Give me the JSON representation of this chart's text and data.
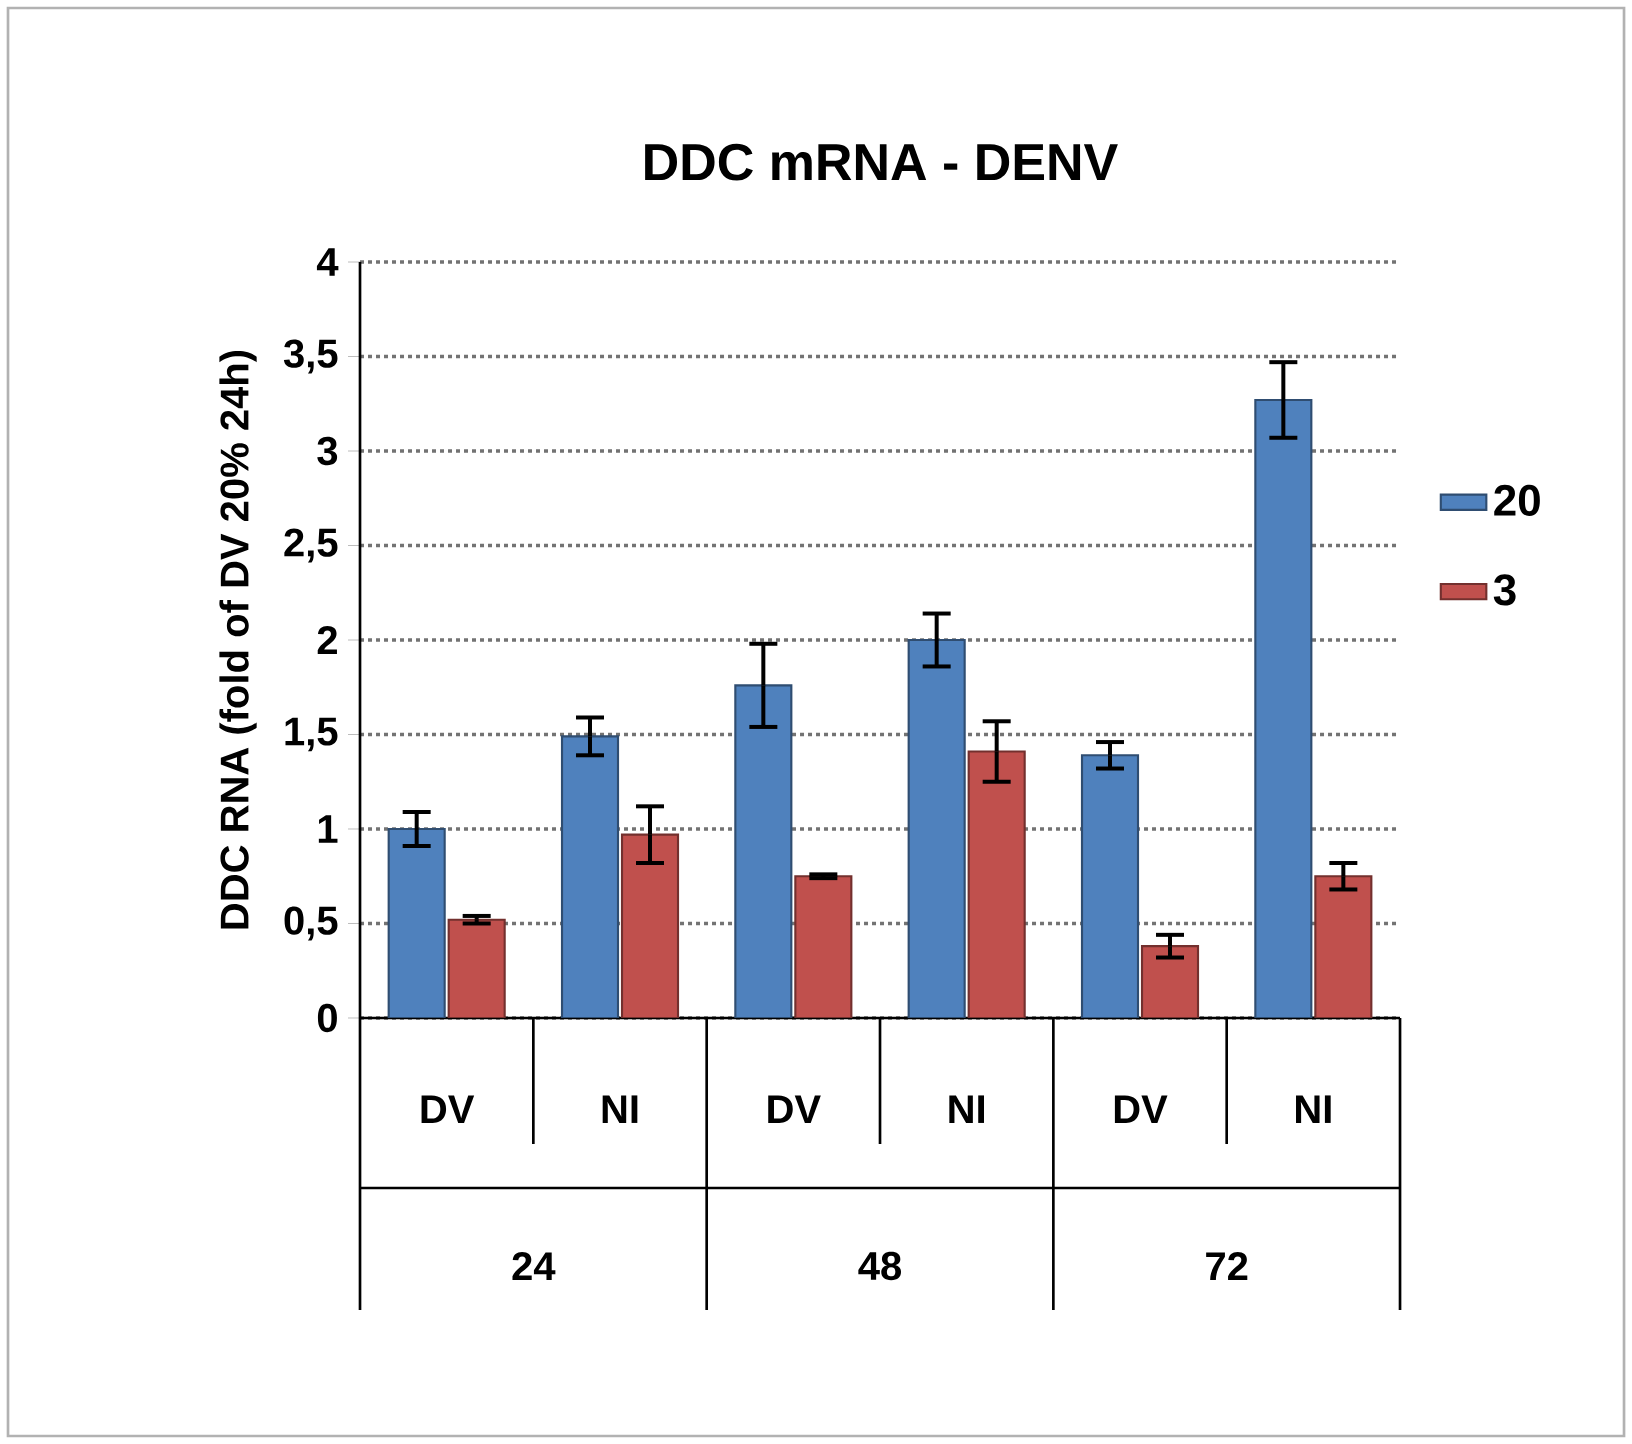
{
  "chart_data": {
    "type": "bar",
    "title": "DDC mRNA - DENV",
    "ylabel": "DDC RNA (fold of DV 20% 24h)",
    "categories": [
      "DV",
      "NI",
      "DV",
      "NI",
      "DV",
      "NI"
    ],
    "series": [
      {
        "name": "20",
        "color": "#4f81bd",
        "values": [
          1.0,
          1.49,
          1.76,
          2.0,
          1.39,
          3.27
        ],
        "errors": [
          0.09,
          0.1,
          0.22,
          0.14,
          0.07,
          0.2
        ]
      },
      {
        "name": "3",
        "color": "#c0504d",
        "values": [
          0.52,
          0.97,
          0.75,
          1.41,
          0.38,
          0.75
        ],
        "errors": [
          0.02,
          0.15,
          0.01,
          0.16,
          0.06,
          0.07
        ]
      }
    ],
    "annotations": [
      "24",
      "48",
      "72"
    ],
    "ylim": [
      0,
      4
    ],
    "yticks": [
      0,
      {
        "value": 0.5,
        "label": "0,5"
      },
      1,
      {
        "value": 1.5,
        "label": "1,5"
      },
      2,
      {
        "value": 2.5,
        "label": "2,5"
      },
      3,
      {
        "value": 3.5,
        "label": "3,5"
      },
      4
    ],
    "grid": "y",
    "legend": "right"
  }
}
